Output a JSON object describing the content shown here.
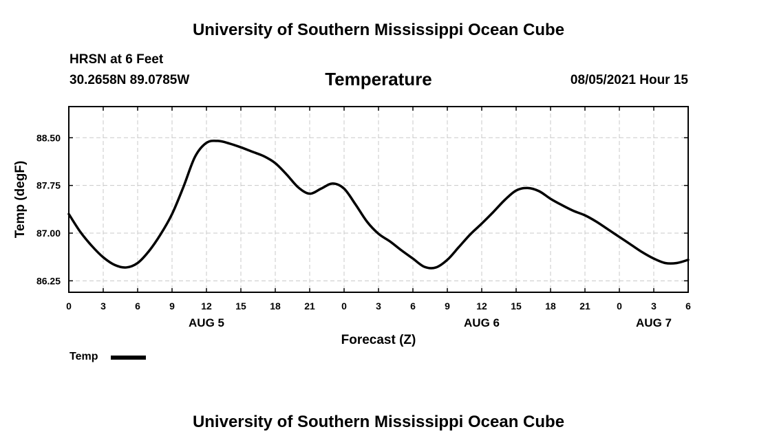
{
  "header": {
    "title": "University of Southern Mississippi Ocean Cube",
    "station": "HRSN at 6 Feet",
    "coords": "30.2658N  89.0785W",
    "variable": "Temperature",
    "timestamp": "08/05/2021 Hour 15"
  },
  "footer": {
    "title": "University of Southern Mississippi Ocean Cube"
  },
  "legend": {
    "label": "Temp"
  },
  "chart_data": {
    "type": "line",
    "xlabel": "Forecast (Z)",
    "ylabel": "Temp (degF)",
    "x_tick_labels": [
      "0",
      "3",
      "6",
      "9",
      "12",
      "15",
      "18",
      "21",
      "0",
      "3",
      "6",
      "9",
      "12",
      "15",
      "18",
      "21",
      "0",
      "3",
      "6"
    ],
    "date_labels": [
      {
        "label": "AUG 5",
        "hour": 12
      },
      {
        "label": "AUG 6",
        "hour": 36
      },
      {
        "label": "AUG 7",
        "hour": 51
      }
    ],
    "y_ticks": [
      "86.25",
      "87.00",
      "87.75",
      "88.50"
    ],
    "y_tick_values": [
      86.25,
      87.0,
      87.75,
      88.5
    ],
    "xlim": [
      0,
      54
    ],
    "ylim": [
      86.07,
      88.99
    ],
    "grid": true,
    "series": [
      {
        "name": "Temp",
        "color": "#000000",
        "x": [
          0,
          1,
          2,
          3,
          4,
          5,
          6,
          7,
          8,
          9,
          10,
          11,
          12,
          13,
          14,
          15,
          16,
          17,
          18,
          19,
          20,
          21,
          22,
          23,
          24,
          25,
          26,
          27,
          28,
          29,
          30,
          31,
          32,
          33,
          34,
          35,
          36,
          37,
          38,
          39,
          40,
          41,
          42,
          43,
          44,
          45,
          46,
          47,
          48,
          49,
          50,
          51,
          52,
          53,
          54
        ],
        "y": [
          87.3,
          87.02,
          86.8,
          86.62,
          86.5,
          86.46,
          86.53,
          86.72,
          86.98,
          87.3,
          87.73,
          88.2,
          88.42,
          88.45,
          88.41,
          88.35,
          88.28,
          88.21,
          88.1,
          87.92,
          87.72,
          87.62,
          87.7,
          87.78,
          87.7,
          87.45,
          87.18,
          86.99,
          86.87,
          86.73,
          86.6,
          86.47,
          86.46,
          86.58,
          86.78,
          86.98,
          87.15,
          87.33,
          87.52,
          87.67,
          87.71,
          87.66,
          87.54,
          87.44,
          87.35,
          87.28,
          87.18,
          87.06,
          86.94,
          86.82,
          86.7,
          86.6,
          86.53,
          86.53,
          86.58
        ]
      }
    ]
  }
}
